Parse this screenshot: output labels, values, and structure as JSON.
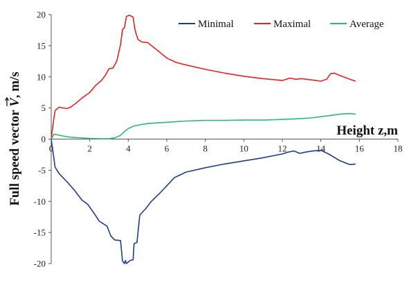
{
  "chart_data": {
    "type": "line",
    "title": "",
    "ylabel": "Full speed vector V, m/s",
    "ylabel_parts": {
      "prefix": "Full speed vector ",
      "symbol": "V",
      "suffix": ", m/s"
    },
    "xlabel": "Height z,m",
    "xlim": [
      0,
      18
    ],
    "ylim": [
      -20,
      20
    ],
    "x_ticks": [
      "0",
      "2",
      "4",
      "6",
      "8",
      "10",
      "12",
      "14",
      "16",
      "18"
    ],
    "y_ticks": [
      "20",
      "15",
      "10",
      "5",
      "0",
      "-5",
      "-10",
      "-15",
      "-20"
    ],
    "grid": false,
    "legend_position": "top",
    "series": [
      {
        "name": "Minimal",
        "color": "#1f3c88",
        "points": [
          [
            0,
            0
          ],
          [
            0.2,
            -4.5
          ],
          [
            0.4,
            -5.5
          ],
          [
            0.8,
            -6.8
          ],
          [
            1.2,
            -8.2
          ],
          [
            1.6,
            -9.8
          ],
          [
            1.9,
            -10.5
          ],
          [
            2.2,
            -11.8
          ],
          [
            2.5,
            -13.2
          ],
          [
            2.9,
            -14.0
          ],
          [
            3.1,
            -15.6
          ],
          [
            3.3,
            -16.2
          ],
          [
            3.6,
            -16.3
          ],
          [
            3.7,
            -19.6
          ],
          [
            3.8,
            -20
          ],
          [
            3.85,
            -19.5
          ],
          [
            3.9,
            -20
          ],
          [
            4.1,
            -19.5
          ],
          [
            4.25,
            -19.4
          ],
          [
            4.3,
            -16.8
          ],
          [
            4.45,
            -16.6
          ],
          [
            4.6,
            -12.2
          ],
          [
            4.9,
            -11.2
          ],
          [
            5.2,
            -10.0
          ],
          [
            5.6,
            -8.8
          ],
          [
            6.0,
            -7.5
          ],
          [
            6.4,
            -6.2
          ],
          [
            7.0,
            -5.3
          ],
          [
            8.0,
            -4.6
          ],
          [
            9.0,
            -4.0
          ],
          [
            10.0,
            -3.5
          ],
          [
            11.0,
            -3.0
          ],
          [
            12.0,
            -2.4
          ],
          [
            12.3,
            -2.1
          ],
          [
            12.6,
            -1.9
          ],
          [
            12.9,
            -2.3
          ],
          [
            13.2,
            -2.1
          ],
          [
            13.6,
            -1.9
          ],
          [
            14.0,
            -1.8
          ],
          [
            14.4,
            -2.4
          ],
          [
            15.0,
            -3.5
          ],
          [
            15.5,
            -4.1
          ],
          [
            15.8,
            -4.0
          ]
        ]
      },
      {
        "name": "Maximal",
        "color": "#e52222",
        "points": [
          [
            0,
            0
          ],
          [
            0.1,
            2.5
          ],
          [
            0.2,
            4.6
          ],
          [
            0.4,
            5.1
          ],
          [
            0.8,
            4.9
          ],
          [
            1.0,
            5.1
          ],
          [
            1.3,
            5.8
          ],
          [
            1.6,
            6.6
          ],
          [
            2.0,
            7.5
          ],
          [
            2.3,
            8.6
          ],
          [
            2.6,
            9.4
          ],
          [
            2.8,
            10.2
          ],
          [
            3.0,
            11.3
          ],
          [
            3.2,
            11.4
          ],
          [
            3.4,
            12.5
          ],
          [
            3.6,
            15.2
          ],
          [
            3.7,
            17.6
          ],
          [
            3.8,
            17.9
          ],
          [
            3.9,
            19.7
          ],
          [
            4.05,
            19.9
          ],
          [
            4.25,
            19.6
          ],
          [
            4.35,
            17.5
          ],
          [
            4.5,
            16.0
          ],
          [
            4.7,
            15.6
          ],
          [
            5.0,
            15.5
          ],
          [
            5.5,
            14.3
          ],
          [
            6.0,
            13.0
          ],
          [
            6.5,
            12.3
          ],
          [
            7.0,
            11.9
          ],
          [
            8.0,
            11.2
          ],
          [
            9.0,
            10.6
          ],
          [
            10.0,
            10.1
          ],
          [
            11.0,
            9.7
          ],
          [
            12.0,
            9.4
          ],
          [
            12.4,
            9.8
          ],
          [
            12.7,
            9.6
          ],
          [
            13.0,
            9.7
          ],
          [
            13.5,
            9.5
          ],
          [
            14.0,
            9.3
          ],
          [
            14.3,
            9.6
          ],
          [
            14.5,
            10.5
          ],
          [
            14.7,
            10.6
          ],
          [
            15.0,
            10.2
          ],
          [
            15.5,
            9.6
          ],
          [
            15.8,
            9.3
          ]
        ]
      },
      {
        "name": "Average",
        "color": "#2eb872",
        "points": [
          [
            0,
            0
          ],
          [
            0.15,
            0.8
          ],
          [
            0.3,
            0.7
          ],
          [
            0.6,
            0.5
          ],
          [
            1.0,
            0.3
          ],
          [
            1.5,
            0.2
          ],
          [
            2.0,
            0.1
          ],
          [
            2.5,
            0.05
          ],
          [
            3.0,
            0.05
          ],
          [
            3.3,
            0.2
          ],
          [
            3.6,
            0.6
          ],
          [
            3.8,
            1.2
          ],
          [
            4.0,
            1.7
          ],
          [
            4.3,
            2.1
          ],
          [
            4.6,
            2.3
          ],
          [
            5.0,
            2.5
          ],
          [
            6.0,
            2.7
          ],
          [
            7.0,
            2.9
          ],
          [
            8.0,
            3.0
          ],
          [
            9.0,
            3.0
          ],
          [
            10.0,
            3.05
          ],
          [
            11.0,
            3.05
          ],
          [
            12.0,
            3.15
          ],
          [
            13.0,
            3.3
          ],
          [
            13.5,
            3.4
          ],
          [
            14.0,
            3.6
          ],
          [
            14.5,
            3.8
          ],
          [
            15.0,
            4.0
          ],
          [
            15.5,
            4.1
          ],
          [
            15.8,
            4.0
          ]
        ]
      }
    ]
  }
}
